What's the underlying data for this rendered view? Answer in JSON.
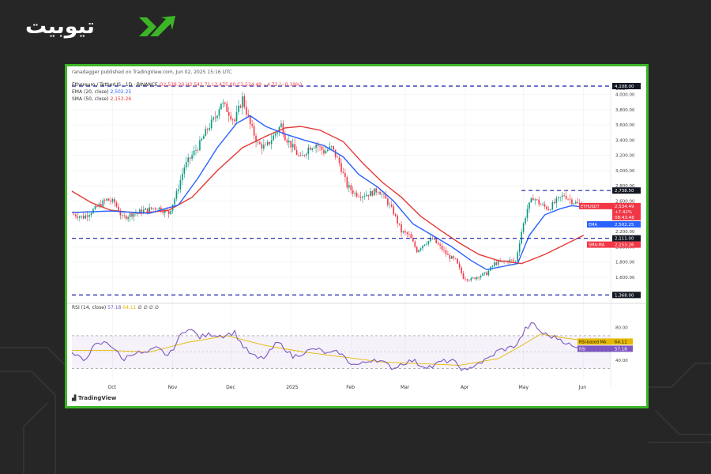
{
  "brand": {
    "logo_text": "تیوبیت"
  },
  "header": {
    "publisher": "ranadagger published on TradingView.com, Jun 02, 2025 15:16 UTC"
  },
  "legend": {
    "symbol": "Ethereum / TetherUS · 1D · BINANCE",
    "ohlc": "O2,539.20 H2,541.71 L2,475.00 C2,534.49 −4.72 (−0.19%)",
    "ema_label": "EMA (20, close)",
    "ema_value": "2,502.25",
    "sma_label": "SMA (50, close)",
    "sma_value": "2,153.26"
  },
  "rsi_legend": {
    "label": "RSI (14, close)",
    "rsi_value": "57.18",
    "ma_value": "64.11",
    "extra": "∅ ∅ ∅ ∅"
  },
  "footer": {
    "tradingview": "TradingView"
  },
  "colors": {
    "up": "#089981",
    "down": "#f23645",
    "ema": "#2962ff",
    "sma": "#e53935",
    "rsi": "#7e57c2",
    "rsi_ma": "#e6b800",
    "level": "#1a1aa8",
    "frame": "#3cb527"
  },
  "chart_data": {
    "type": "candlestick",
    "currency": "USDT",
    "price_axis": {
      "ticks": [
        1600,
        1800,
        2000,
        2200,
        2400,
        2600,
        2800,
        3000,
        3200,
        3400,
        3600,
        3800,
        4000
      ],
      "tick_labels": [
        "1,600.00",
        "1,800.00",
        "2,000.00",
        "2,200.00",
        "2,400.00",
        "2,600.00",
        "2,800.00",
        "3,000.00",
        "3,200.00",
        "3,400.00",
        "3,600.00",
        "3,800.00",
        "4,000.00"
      ],
      "ylim": [
        1320,
        4140
      ]
    },
    "time_axis": {
      "labels": [
        "Oct",
        "Nov",
        "Dec",
        "2025",
        "Feb",
        "Mar",
        "Apr",
        "May",
        "Jun"
      ],
      "label_days": [
        21,
        52,
        82,
        113,
        144,
        172,
        203,
        233,
        264
      ],
      "xlim": [
        0,
        278
      ]
    },
    "price_path": [
      [
        0,
        2430
      ],
      [
        6,
        2390
      ],
      [
        12,
        2500
      ],
      [
        18,
        2620
      ],
      [
        22,
        2580
      ],
      [
        26,
        2380
      ],
      [
        32,
        2440
      ],
      [
        38,
        2480
      ],
      [
        44,
        2520
      ],
      [
        50,
        2440
      ],
      [
        54,
        2700
      ],
      [
        58,
        3050
      ],
      [
        62,
        3200
      ],
      [
        66,
        3350
      ],
      [
        70,
        3550
      ],
      [
        74,
        3700
      ],
      [
        77,
        3900
      ],
      [
        80,
        3800
      ],
      [
        84,
        3650
      ],
      [
        88,
        3950
      ],
      [
        92,
        3600
      ],
      [
        96,
        3350
      ],
      [
        100,
        3300
      ],
      [
        104,
        3450
      ],
      [
        108,
        3600
      ],
      [
        110,
        3450
      ],
      [
        114,
        3300
      ],
      [
        118,
        3150
      ],
      [
        122,
        3300
      ],
      [
        126,
        3350
      ],
      [
        130,
        3250
      ],
      [
        134,
        3300
      ],
      [
        138,
        3100
      ],
      [
        142,
        2800
      ],
      [
        146,
        2700
      ],
      [
        150,
        2680
      ],
      [
        154,
        2700
      ],
      [
        158,
        2750
      ],
      [
        162,
        2620
      ],
      [
        166,
        2450
      ],
      [
        170,
        2200
      ],
      [
        174,
        2150
      ],
      [
        178,
        1950
      ],
      [
        182,
        2050
      ],
      [
        186,
        2100
      ],
      [
        190,
        2000
      ],
      [
        194,
        1880
      ],
      [
        198,
        1820
      ],
      [
        202,
        1600
      ],
      [
        206,
        1570
      ],
      [
        210,
        1620
      ],
      [
        214,
        1650
      ],
      [
        218,
        1780
      ],
      [
        222,
        1800
      ],
      [
        226,
        1820
      ],
      [
        229,
        1810
      ],
      [
        232,
        2200
      ],
      [
        235,
        2500
      ],
      [
        238,
        2650
      ],
      [
        242,
        2550
      ],
      [
        246,
        2500
      ],
      [
        250,
        2600
      ],
      [
        254,
        2680
      ],
      [
        258,
        2600
      ],
      [
        262,
        2550
      ],
      [
        264,
        2534
      ]
    ],
    "ema20_path": [
      [
        0,
        2450
      ],
      [
        20,
        2470
      ],
      [
        40,
        2440
      ],
      [
        55,
        2550
      ],
      [
        65,
        2900
      ],
      [
        75,
        3300
      ],
      [
        85,
        3620
      ],
      [
        92,
        3720
      ],
      [
        100,
        3580
      ],
      [
        110,
        3480
      ],
      [
        120,
        3400
      ],
      [
        130,
        3330
      ],
      [
        140,
        3180
      ],
      [
        148,
        2950
      ],
      [
        158,
        2780
      ],
      [
        166,
        2600
      ],
      [
        176,
        2300
      ],
      [
        186,
        2150
      ],
      [
        196,
        2000
      ],
      [
        206,
        1820
      ],
      [
        214,
        1700
      ],
      [
        222,
        1740
      ],
      [
        230,
        1780
      ],
      [
        236,
        2150
      ],
      [
        244,
        2420
      ],
      [
        252,
        2500
      ],
      [
        258,
        2540
      ],
      [
        264,
        2520
      ]
    ],
    "sma50_path": [
      [
        0,
        2730
      ],
      [
        10,
        2580
      ],
      [
        20,
        2480
      ],
      [
        35,
        2440
      ],
      [
        50,
        2480
      ],
      [
        62,
        2650
      ],
      [
        75,
        3000
      ],
      [
        88,
        3300
      ],
      [
        100,
        3450
      ],
      [
        110,
        3560
      ],
      [
        118,
        3580
      ],
      [
        128,
        3530
      ],
      [
        140,
        3380
      ],
      [
        150,
        3100
      ],
      [
        160,
        2850
      ],
      [
        170,
        2650
      ],
      [
        180,
        2400
      ],
      [
        190,
        2220
      ],
      [
        200,
        2050
      ],
      [
        210,
        1900
      ],
      [
        220,
        1820
      ],
      [
        232,
        1780
      ],
      [
        244,
        1900
      ],
      [
        256,
        2050
      ],
      [
        264,
        2150
      ]
    ],
    "levels": [
      {
        "price": 4109,
        "label": "4,108.00"
      },
      {
        "price": 2738.5,
        "label": "2,738.50",
        "start_day": 232
      },
      {
        "price": 2111,
        "label": "2,111.00"
      },
      {
        "price": 1368,
        "label": "1,368.00"
      }
    ],
    "price_labels": [
      {
        "name": "ETHUSDT",
        "lines": [
          "2,534.49",
          "+7.42%",
          "08:43:48"
        ],
        "price": 2534.49,
        "color": "#f23645"
      },
      {
        "name": "EMA",
        "value": "2,502.25",
        "price": 2502.25,
        "color": "#2962ff"
      },
      {
        "name": "SMA:MA",
        "value": "2,153.26",
        "price": 2153.26,
        "color": "#f23645"
      }
    ],
    "rsi": {
      "upper_band": 70,
      "lower_band": 30,
      "ticks": [
        40,
        80
      ],
      "tick_labels": [
        "40.00",
        "80.00"
      ],
      "ylim": [
        18,
        92
      ],
      "rsi_path": [
        [
          0,
          48
        ],
        [
          6,
          40
        ],
        [
          12,
          58
        ],
        [
          18,
          62
        ],
        [
          22,
          55
        ],
        [
          26,
          40
        ],
        [
          32,
          50
        ],
        [
          38,
          48
        ],
        [
          44,
          55
        ],
        [
          50,
          45
        ],
        [
          56,
          70
        ],
        [
          60,
          80
        ],
        [
          66,
          68
        ],
        [
          72,
          72
        ],
        [
          78,
          70
        ],
        [
          84,
          74
        ],
        [
          88,
          58
        ],
        [
          92,
          48
        ],
        [
          96,
          42
        ],
        [
          100,
          44
        ],
        [
          106,
          62
        ],
        [
          110,
          55
        ],
        [
          114,
          44
        ],
        [
          120,
          50
        ],
        [
          126,
          54
        ],
        [
          132,
          48
        ],
        [
          138,
          50
        ],
        [
          142,
          40
        ],
        [
          146,
          34
        ],
        [
          150,
          36
        ],
        [
          156,
          42
        ],
        [
          160,
          38
        ],
        [
          166,
          30
        ],
        [
          170,
          36
        ],
        [
          176,
          40
        ],
        [
          180,
          34
        ],
        [
          186,
          32
        ],
        [
          190,
          38
        ],
        [
          196,
          40
        ],
        [
          200,
          32
        ],
        [
          204,
          26
        ],
        [
          208,
          36
        ],
        [
          212,
          38
        ],
        [
          216,
          44
        ],
        [
          220,
          52
        ],
        [
          226,
          55
        ],
        [
          230,
          60
        ],
        [
          234,
          78
        ],
        [
          238,
          85
        ],
        [
          242,
          74
        ],
        [
          246,
          70
        ],
        [
          252,
          66
        ],
        [
          256,
          60
        ],
        [
          260,
          54
        ],
        [
          264,
          57
        ]
      ],
      "rsi_ma_path": [
        [
          0,
          52
        ],
        [
          20,
          52
        ],
        [
          40,
          50
        ],
        [
          60,
          62
        ],
        [
          80,
          70
        ],
        [
          100,
          58
        ],
        [
          120,
          50
        ],
        [
          140,
          44
        ],
        [
          160,
          38
        ],
        [
          180,
          36
        ],
        [
          200,
          34
        ],
        [
          220,
          42
        ],
        [
          232,
          58
        ],
        [
          242,
          72
        ],
        [
          252,
          68
        ],
        [
          264,
          64
        ]
      ],
      "labels": [
        {
          "name": "RSI-based MA",
          "value": "64.11",
          "color": "#e6b800"
        },
        {
          "name": "RSI",
          "value": "57.18",
          "color": "#7e57c2"
        }
      ]
    }
  }
}
